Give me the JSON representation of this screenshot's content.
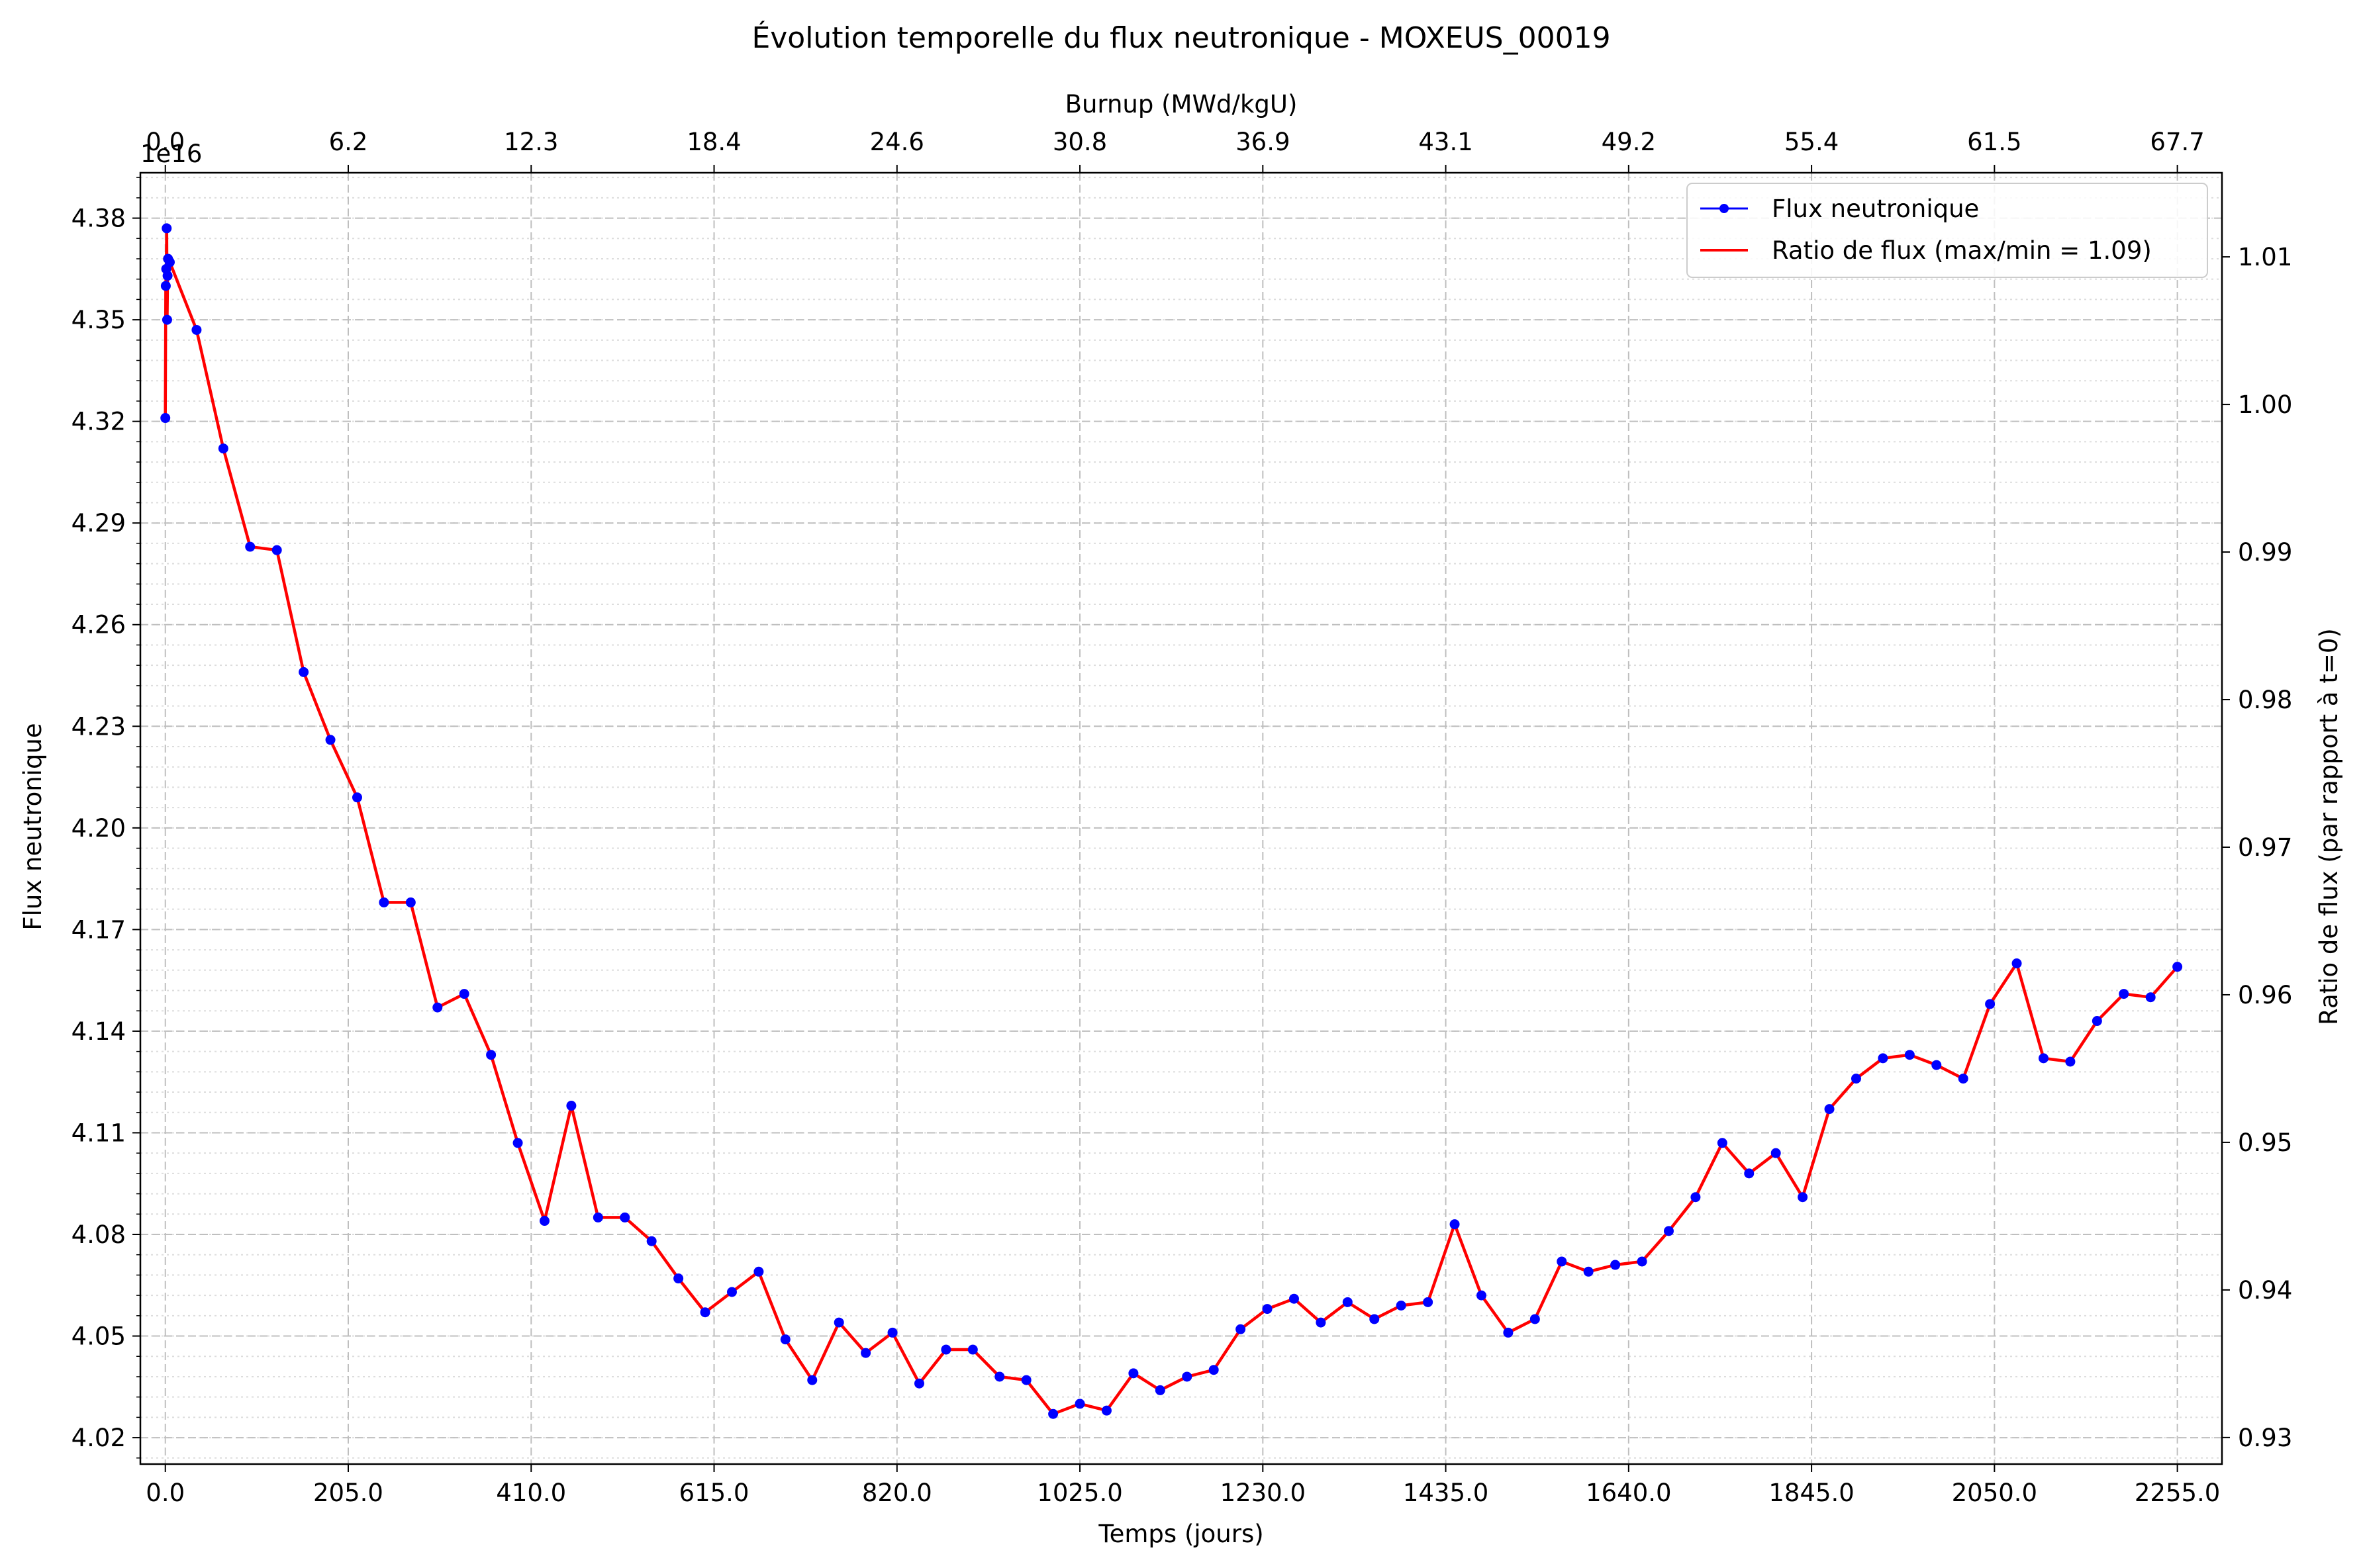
{
  "chart_data": {
    "type": "line",
    "title": "Évolution temporelle du flux neutronique - MOXEUS_00019",
    "xlabel": "Temps (jours)",
    "ylabel": "Flux neutronique",
    "y2label": "Ratio de flux (par rapport à t=0)",
    "top_xlabel": "Burnup (MWd/kgU)",
    "y_offset_label": "1e16",
    "xlim": [
      -28,
      2305
    ],
    "ylim": [
      4.0122,
      4.3934
    ],
    "y2lim": [
      0.9282,
      1.0157
    ],
    "grid": true,
    "legend_position": "top-right",
    "x_ticks": [
      "0.0",
      "205.0",
      "410.0",
      "615.0",
      "820.0",
      "1025.0",
      "1230.0",
      "1435.0",
      "1640.0",
      "1845.0",
      "2050.0",
      "2255.0"
    ],
    "x_tick_values": [
      0,
      205,
      410,
      615,
      820,
      1025,
      1230,
      1435,
      1640,
      1845,
      2050,
      2255
    ],
    "top_x_ticks": [
      "0.0",
      "6.2",
      "12.3",
      "18.4",
      "24.6",
      "30.8",
      "36.9",
      "43.1",
      "49.2",
      "55.4",
      "61.5",
      "67.7"
    ],
    "y_ticks": [
      "4.02",
      "4.05",
      "4.08",
      "4.11",
      "4.14",
      "4.17",
      "4.20",
      "4.23",
      "4.26",
      "4.29",
      "4.32",
      "4.35",
      "4.38"
    ],
    "y_tick_values": [
      4.02,
      4.05,
      4.08,
      4.11,
      4.14,
      4.17,
      4.2,
      4.23,
      4.26,
      4.29,
      4.32,
      4.35,
      4.38
    ],
    "y2_ticks": [
      "0.93",
      "0.94",
      "0.95",
      "0.96",
      "0.97",
      "0.98",
      "0.99",
      "1.00",
      "1.01"
    ],
    "y2_tick_values": [
      0.93,
      0.94,
      0.95,
      0.96,
      0.97,
      0.98,
      0.99,
      1.0,
      1.01
    ],
    "series": [
      {
        "name": "Flux neutronique",
        "color": "#0000ff",
        "marker": "circle",
        "x": [
          0,
          0.5,
          1,
          1.5,
          2,
          2.5,
          3,
          5,
          35,
          65,
          95,
          125,
          155,
          185,
          215,
          245,
          275,
          305,
          335,
          365,
          395,
          425,
          455,
          485,
          515,
          545,
          575,
          605,
          635,
          665,
          695,
          725,
          755,
          785,
          815,
          845,
          875,
          905,
          935,
          965,
          995,
          1025,
          1055,
          1085,
          1115,
          1145,
          1175,
          1205,
          1235,
          1265,
          1295,
          1325,
          1355,
          1385,
          1415,
          1445,
          1475,
          1505,
          1535,
          1565,
          1595,
          1625,
          1655,
          1685,
          1715,
          1745,
          1775,
          1805,
          1835,
          1865,
          1895,
          1925,
          1955,
          1985,
          2015,
          2045,
          2075,
          2105,
          2135,
          2165,
          2195,
          2225,
          2255
        ],
        "y": [
          4.321,
          4.36,
          4.365,
          4.377,
          4.35,
          4.363,
          4.368,
          4.367,
          4.347,
          4.312,
          4.283,
          4.282,
          4.246,
          4.226,
          4.209,
          4.178,
          4.178,
          4.147,
          4.151,
          4.133,
          4.107,
          4.084,
          4.118,
          4.085,
          4.085,
          4.078,
          4.067,
          4.057,
          4.063,
          4.069,
          4.049,
          4.037,
          4.054,
          4.045,
          4.051,
          4.036,
          4.046,
          4.046,
          4.038,
          4.037,
          4.027,
          4.03,
          4.028,
          4.039,
          4.034,
          4.038,
          4.04,
          4.052,
          4.058,
          4.061,
          4.054,
          4.06,
          4.055,
          4.059,
          4.06,
          4.083,
          4.062,
          4.051,
          4.055,
          4.072,
          4.069,
          4.071,
          4.072,
          4.081,
          4.091,
          4.107,
          4.098,
          4.104,
          4.091,
          4.117,
          4.126,
          4.132,
          4.133,
          4.13,
          4.126,
          4.148,
          4.16,
          4.132,
          4.131,
          4.143,
          4.151,
          4.15,
          4.159
        ]
      },
      {
        "name": "Ratio de flux (max/min = 1.09)",
        "color": "#ff0000",
        "marker": "none"
      }
    ]
  }
}
